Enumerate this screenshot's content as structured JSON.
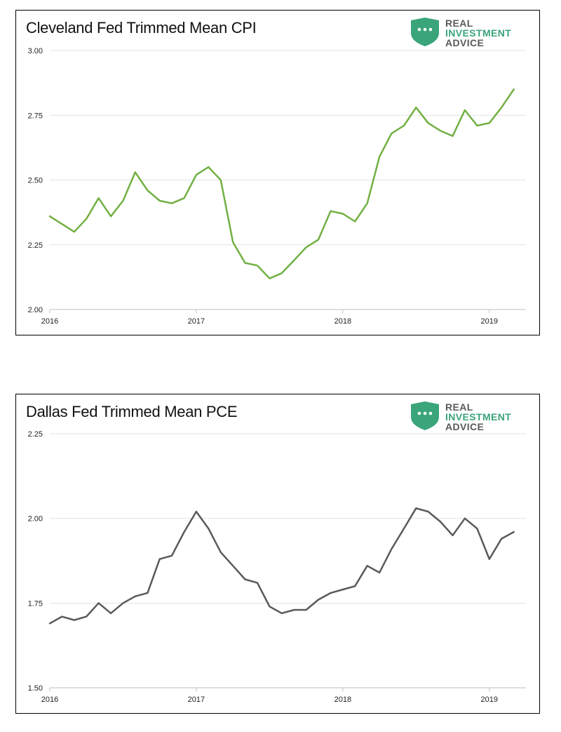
{
  "brand": {
    "line1": "REAL",
    "line2": "INVESTMENT",
    "line3": "ADVICE",
    "colors": {
      "line1": "#5a5a5a",
      "line2": "#3aa57a",
      "line3": "#5a5a5a",
      "shield": "#3aa57a"
    }
  },
  "chart_data": [
    {
      "type": "line",
      "title": "Cleveland Fed Trimmed Mean CPI",
      "xlabel": "",
      "ylabel": "",
      "ylim": [
        2.0,
        3.0
      ],
      "xlim": [
        2016.0,
        2019.25
      ],
      "grid": true,
      "legend": "none",
      "color": "#72b043",
      "x_ticks": [
        "2016",
        "2017",
        "2018",
        "2019"
      ],
      "y_ticks": [
        "2.00",
        "2.25",
        "2.50",
        "2.75",
        "3.00"
      ],
      "series": [
        {
          "x": [
            2016.0,
            2016.083,
            2016.167,
            2016.25,
            2016.333,
            2016.417,
            2016.5,
            2016.583,
            2016.667,
            2016.75,
            2016.833,
            2016.917,
            2017.0,
            2017.083,
            2017.167,
            2017.25,
            2017.333,
            2017.417,
            2017.5,
            2017.583,
            2017.667,
            2017.75,
            2017.833,
            2017.917,
            2018.0,
            2018.083,
            2018.167,
            2018.25,
            2018.333,
            2018.417,
            2018.5,
            2018.583,
            2018.667,
            2018.75,
            2018.833,
            2018.917,
            2019.0,
            2019.083,
            2019.167
          ],
          "y": [
            2.36,
            2.33,
            2.3,
            2.35,
            2.43,
            2.36,
            2.42,
            2.53,
            2.46,
            2.42,
            2.41,
            2.43,
            2.52,
            2.55,
            2.5,
            2.26,
            2.18,
            2.17,
            2.12,
            2.14,
            2.19,
            2.24,
            2.27,
            2.38,
            2.37,
            2.34,
            2.41,
            2.59,
            2.68,
            2.71,
            2.78,
            2.72,
            2.69,
            2.67,
            2.77,
            2.71,
            2.72,
            2.78,
            2.85
          ]
        }
      ]
    },
    {
      "type": "line",
      "title": "Dallas Fed Trimmed Mean PCE",
      "xlabel": "",
      "ylabel": "",
      "ylim": [
        1.5,
        2.25
      ],
      "xlim": [
        2016.0,
        2019.25
      ],
      "grid": true,
      "legend": "none",
      "color": "#5a5a5a",
      "x_ticks": [
        "2016",
        "2017",
        "2018",
        "2019"
      ],
      "y_ticks": [
        "1.50",
        "1.75",
        "2.00",
        "2.25"
      ],
      "series": [
        {
          "x": [
            2016.0,
            2016.083,
            2016.167,
            2016.25,
            2016.333,
            2016.417,
            2016.5,
            2016.583,
            2016.667,
            2016.75,
            2016.833,
            2016.917,
            2017.0,
            2017.083,
            2017.167,
            2017.25,
            2017.333,
            2017.417,
            2017.5,
            2017.583,
            2017.667,
            2017.75,
            2017.833,
            2017.917,
            2018.0,
            2018.083,
            2018.167,
            2018.25,
            2018.333,
            2018.417,
            2018.5,
            2018.583,
            2018.667,
            2018.75,
            2018.833,
            2018.917,
            2019.0,
            2019.083,
            2019.167
          ],
          "y": [
            1.69,
            1.71,
            1.7,
            1.71,
            1.75,
            1.72,
            1.75,
            1.77,
            1.78,
            1.88,
            1.89,
            1.96,
            2.02,
            1.97,
            1.9,
            1.86,
            1.82,
            1.81,
            1.74,
            1.72,
            1.73,
            1.73,
            1.76,
            1.78,
            1.79,
            1.8,
            1.86,
            1.84,
            1.91,
            1.97,
            2.03,
            2.02,
            1.99,
            1.95,
            2.0,
            1.97,
            1.88,
            1.94,
            1.96
          ]
        }
      ]
    }
  ]
}
